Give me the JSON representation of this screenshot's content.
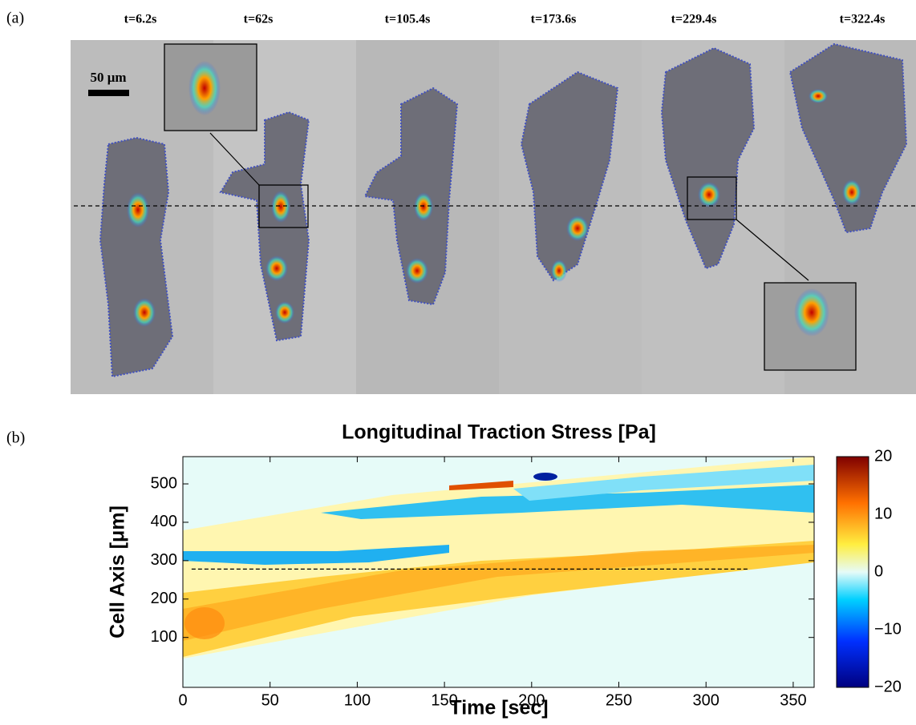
{
  "panel_a": {
    "label": "(a)",
    "time_labels": [
      "t=6.2s",
      "t=62s",
      "t=105.4s",
      "t=173.6s",
      "t=229.4s",
      "t=322.4s"
    ],
    "scale_bar": "50 μm"
  },
  "chart_data": {
    "type": "heatmap",
    "panel_label": "(b)",
    "title": "Longitudinal Traction Stress [Pa]",
    "x_label": "Time [sec]",
    "y_label": "Cell Axis [μm]",
    "xlim": [
      0,
      362
    ],
    "xticks": [
      0,
      50,
      100,
      150,
      200,
      250,
      300,
      350
    ],
    "ylim": [
      -30,
      571
    ],
    "yticks": [
      100,
      200,
      300,
      400,
      500
    ],
    "reference_line": 278,
    "colorbar": {
      "clim": [
        -20,
        20
      ],
      "ticks": [
        {
          "value": -20,
          "label": "−20"
        },
        {
          "value": -10,
          "label": "−10"
        },
        0,
        10,
        20
      ]
    }
  }
}
